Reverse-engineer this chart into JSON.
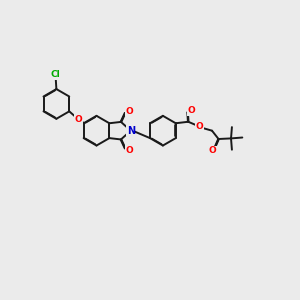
{
  "background_color": "#ebebeb",
  "bond_color": "#1a1a1a",
  "atom_colors": {
    "O": "#ff0000",
    "N": "#0000cc",
    "Cl": "#00aa00",
    "C": "#1a1a1a"
  },
  "lw": 1.4,
  "dlw": 1.2,
  "do": 0.018,
  "fs": 6.5
}
